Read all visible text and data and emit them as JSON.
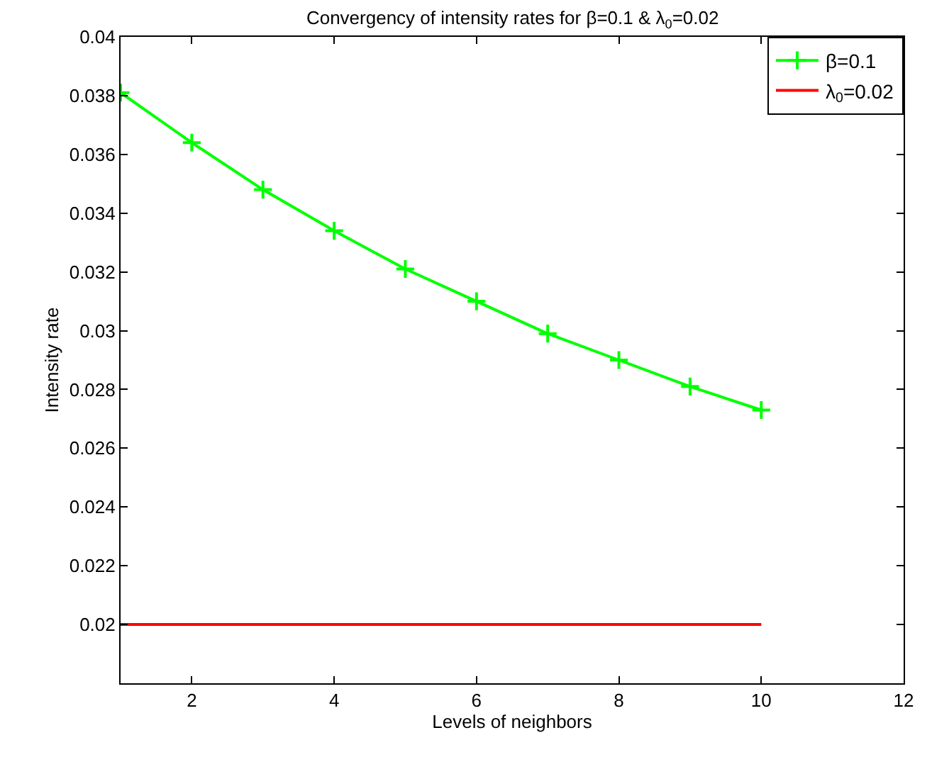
{
  "chart_data": {
    "type": "line",
    "title": "Convergency of intensity rates for β=0.1 & λ$_{0}$=0.02",
    "xlabel": "Levels of neighbors",
    "ylabel": "Intensity rate",
    "x": [
      1,
      2,
      3,
      4,
      5,
      6,
      7,
      8,
      9,
      10
    ],
    "series": [
      {
        "name": "β=0.1",
        "color": "#00ff00",
        "marker": "cross",
        "values": [
          0.0381,
          0.0364,
          0.0348,
          0.0334,
          0.0321,
          0.031,
          0.0299,
          0.029,
          0.0281,
          0.0273
        ]
      },
      {
        "name": "λ$_{0}$=0.02",
        "color": "#ff0000",
        "marker": "none",
        "values": [
          0.02,
          0.02,
          0.02,
          0.02,
          0.02,
          0.02,
          0.02,
          0.02,
          0.02,
          0.02
        ]
      }
    ],
    "xlim": [
      1,
      12
    ],
    "xticks": [
      2,
      4,
      6,
      8,
      10,
      12
    ],
    "ylim": [
      0.018,
      0.04
    ],
    "yticks": [
      0.02,
      0.022,
      0.024,
      0.026,
      0.028,
      0.03,
      0.032,
      0.034,
      0.036,
      0.038,
      0.04
    ],
    "legend": "top right",
    "line_style": "solid"
  }
}
